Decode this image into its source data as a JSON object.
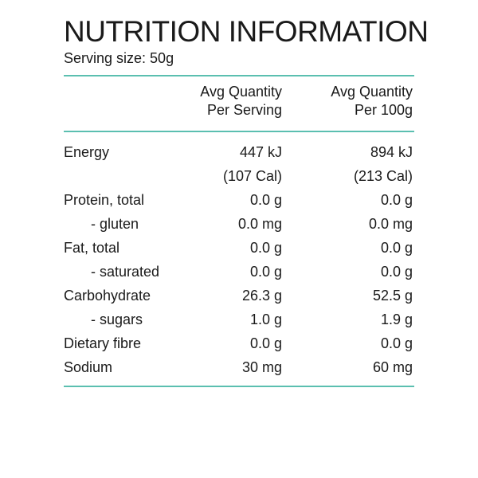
{
  "panel": {
    "title": "NUTRITION INFORMATION",
    "serving_size": "Serving size: 50g",
    "accent_color": "#5bbfb0"
  },
  "columns": {
    "per_serving_line1": "Avg Quantity",
    "per_serving_line2": "Per Serving",
    "per_100g_line1": "Avg Quantity",
    "per_100g_line2": "Per 100g"
  },
  "rows": [
    {
      "label": "Energy",
      "per_serving": "447 kJ",
      "per_100g": "894 kJ"
    },
    {
      "label": "",
      "per_serving": "(107 Cal)",
      "per_100g": "(213 Cal)"
    },
    {
      "label": "Protein, total",
      "per_serving": "0.0 g",
      "per_100g": "0.0 g"
    },
    {
      "label": "- gluten",
      "per_serving": "0.0 mg",
      "per_100g": "0.0 mg"
    },
    {
      "label": "Fat, total",
      "per_serving": "0.0 g",
      "per_100g": "0.0 g"
    },
    {
      "label": "- saturated",
      "per_serving": "0.0 g",
      "per_100g": "0.0 g"
    },
    {
      "label": "Carbohydrate",
      "per_serving": "26.3 g",
      "per_100g": "52.5 g"
    },
    {
      "label": "- sugars",
      "per_serving": "1.0 g",
      "per_100g": "1.9 g"
    },
    {
      "label": "Dietary fibre",
      "per_serving": "0.0 g",
      "per_100g": "0.0 g"
    },
    {
      "label": "Sodium",
      "per_serving": "30 mg",
      "per_100g": "60 mg"
    }
  ]
}
